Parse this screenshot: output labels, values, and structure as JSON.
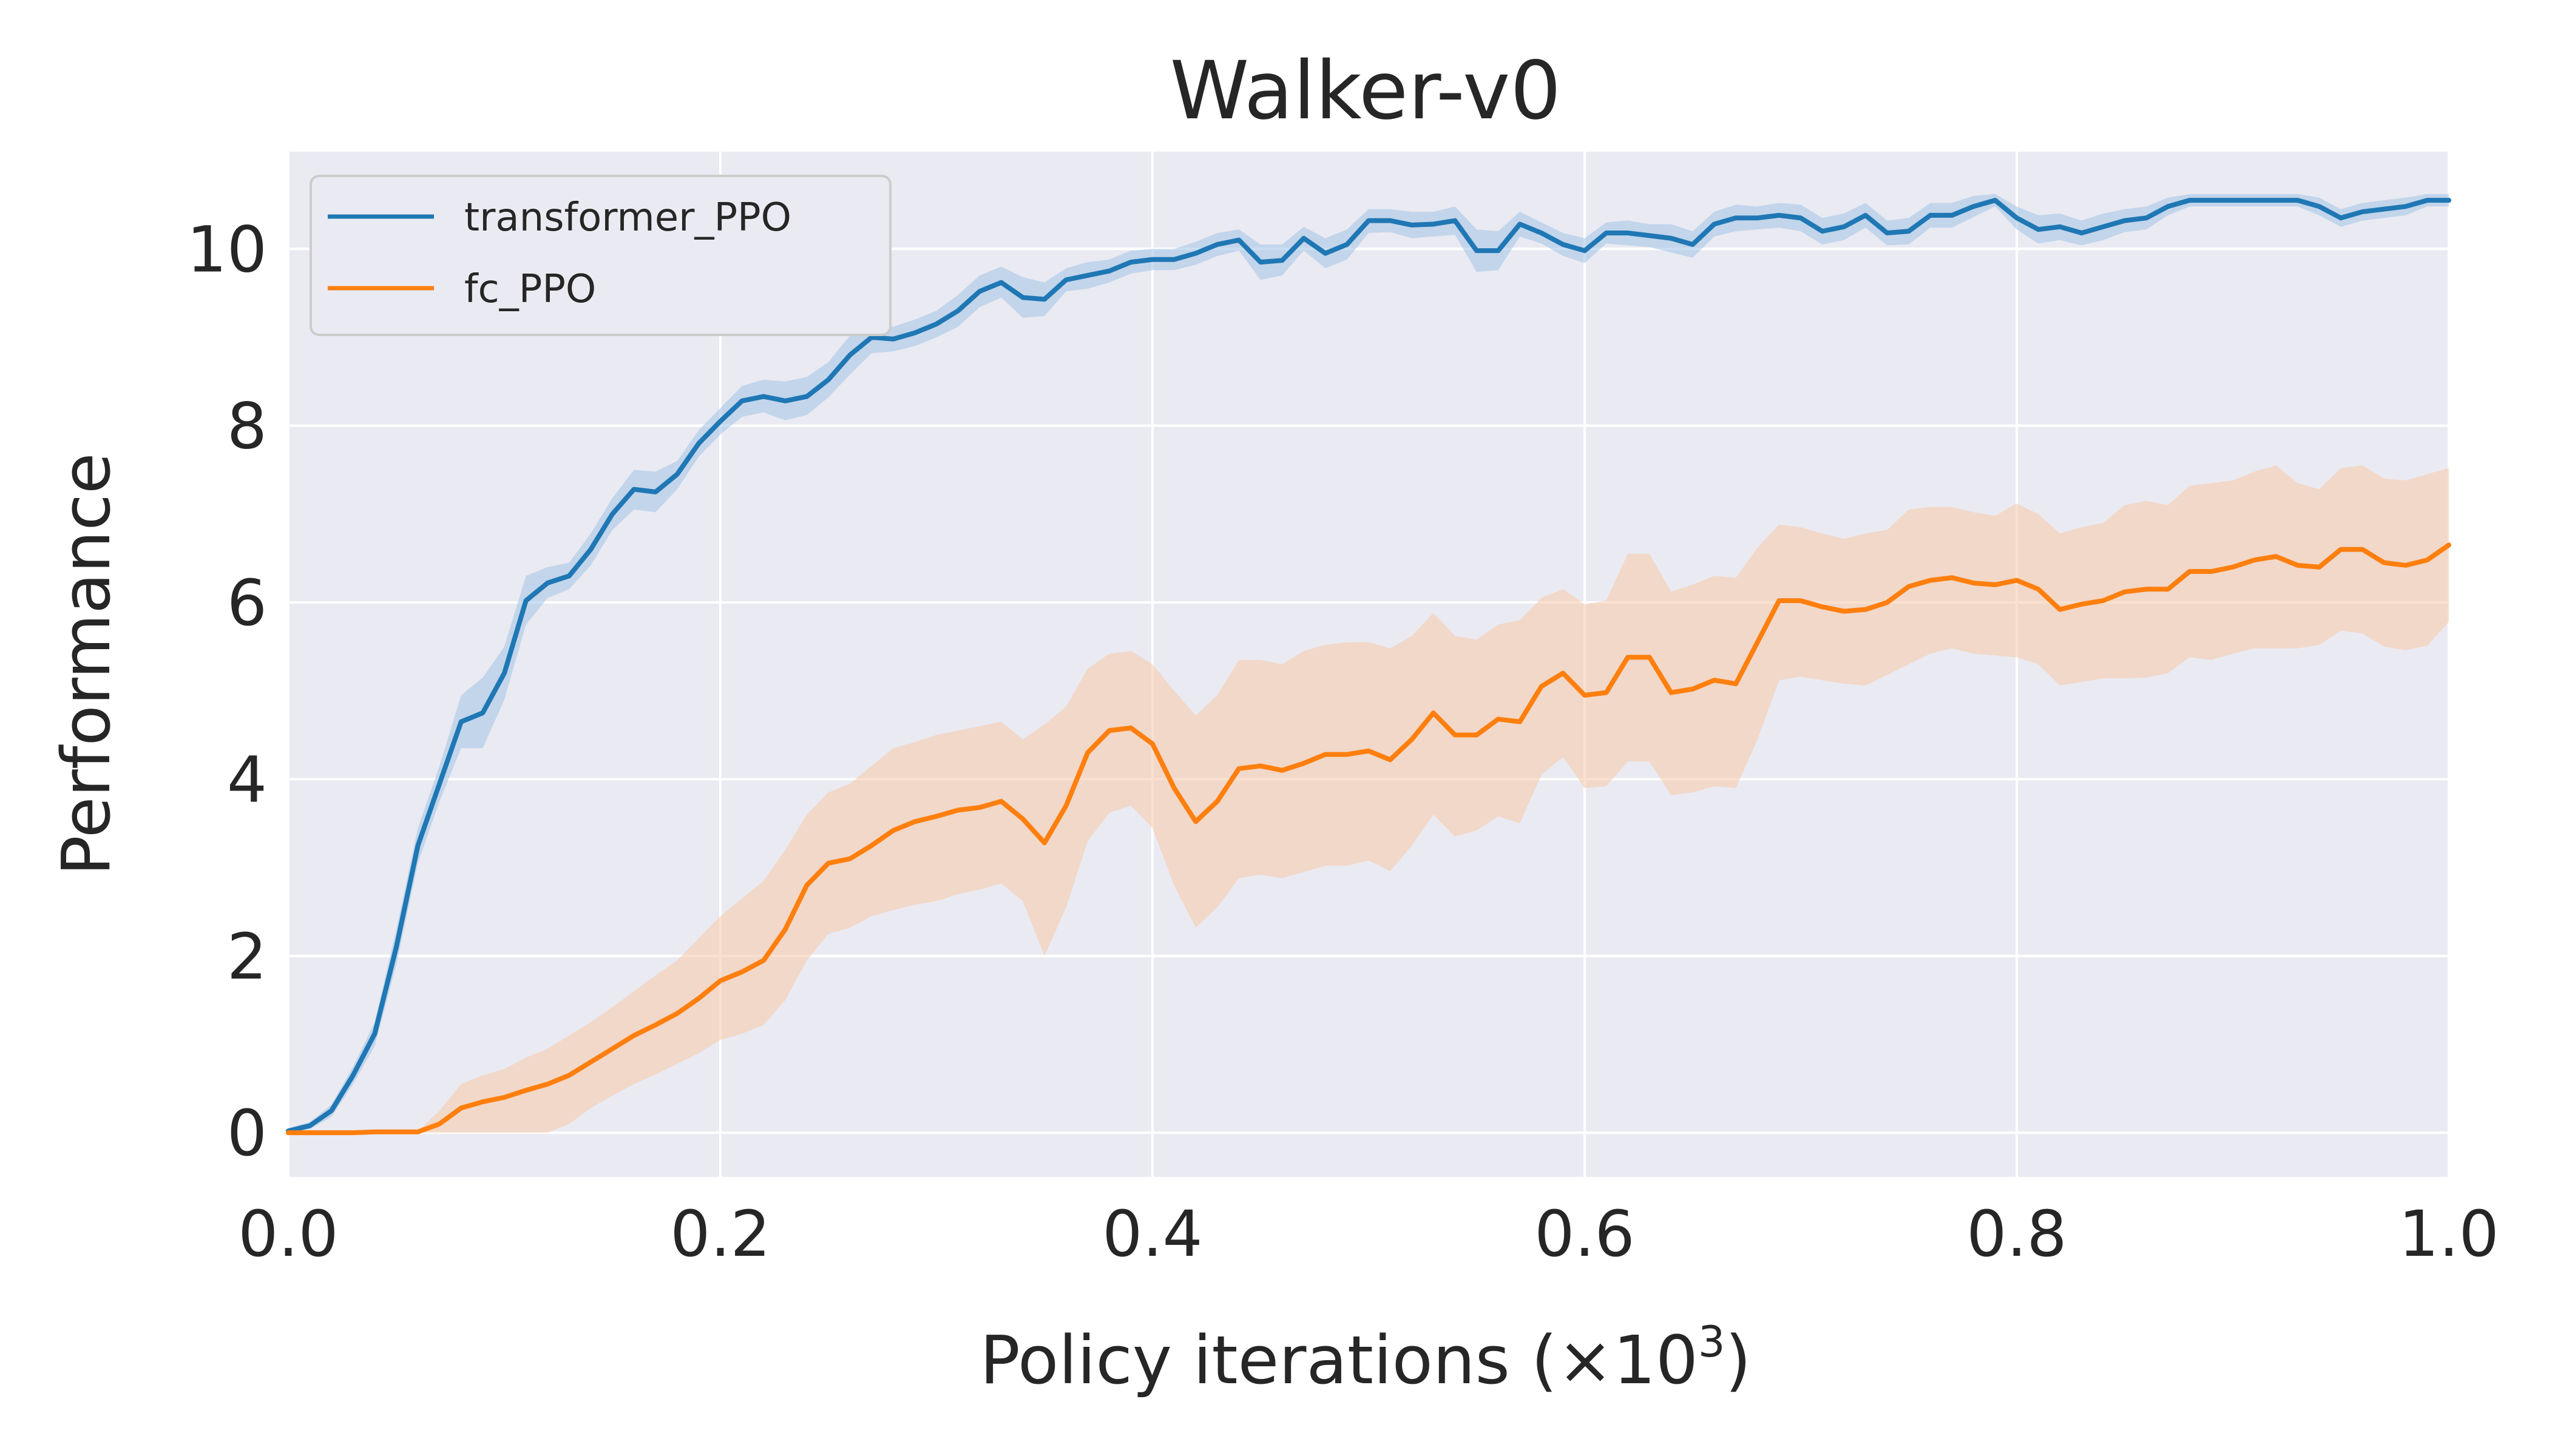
{
  "chart_data": {
    "type": "line",
    "title": "Walker-v0",
    "xlabel": "Policy iterations (×10",
    "xlabel_exponent": "3",
    "xlabel_close": ")",
    "ylabel": "Performance",
    "xlim": [
      0.0,
      1.0
    ],
    "ylim": [
      -0.5,
      11.1
    ],
    "xticks": [
      0.0,
      0.2,
      0.4,
      0.6,
      0.8,
      1.0
    ],
    "xtick_labels": [
      "0.0",
      "0.2",
      "0.4",
      "0.6",
      "0.8",
      "1.0"
    ],
    "yticks": [
      0,
      2,
      4,
      6,
      8,
      10
    ],
    "ytick_labels": [
      "0",
      "2",
      "4",
      "6",
      "8",
      "10"
    ],
    "grid": true,
    "legend_position": "top-left",
    "background_color": "#eaeaf2",
    "x": [
      0.0,
      0.01,
      0.02,
      0.03,
      0.04,
      0.05,
      0.06,
      0.07,
      0.08,
      0.09,
      0.1,
      0.11,
      0.12,
      0.13,
      0.14,
      0.15,
      0.16,
      0.17,
      0.18,
      0.19,
      0.2,
      0.21,
      0.22,
      0.23,
      0.24,
      0.25,
      0.26,
      0.27,
      0.28,
      0.29,
      0.3,
      0.31,
      0.32,
      0.33,
      0.34,
      0.35,
      0.36,
      0.37,
      0.38,
      0.39,
      0.4,
      0.41,
      0.42,
      0.43,
      0.44,
      0.45,
      0.46,
      0.47,
      0.48,
      0.49,
      0.5,
      0.51,
      0.52,
      0.53,
      0.54,
      0.55,
      0.56,
      0.57,
      0.58,
      0.59,
      0.6,
      0.61,
      0.62,
      0.63,
      0.64,
      0.65,
      0.66,
      0.67,
      0.68,
      0.69,
      0.7,
      0.71,
      0.72,
      0.73,
      0.74,
      0.75,
      0.76,
      0.77,
      0.78,
      0.79,
      0.8,
      0.81,
      0.82,
      0.83,
      0.84,
      0.85,
      0.86,
      0.87,
      0.88,
      0.89,
      0.9,
      0.91,
      0.92,
      0.93,
      0.94,
      0.95,
      0.96,
      0.97,
      0.98,
      0.99,
      1.0
    ],
    "series": [
      {
        "name": "transformer_PPO",
        "color": "#1f77b4",
        "band_color": "#a1c3e6",
        "values": [
          0.02,
          0.08,
          0.25,
          0.65,
          1.12,
          2.1,
          3.25,
          3.95,
          4.65,
          4.75,
          5.2,
          6.02,
          6.22,
          6.3,
          6.6,
          7.0,
          7.28,
          7.25,
          7.45,
          7.8,
          8.05,
          8.28,
          8.33,
          8.28,
          8.33,
          8.52,
          8.8,
          9.0,
          8.98,
          9.05,
          9.15,
          9.3,
          9.52,
          9.62,
          9.45,
          9.43,
          9.65,
          9.7,
          9.75,
          9.85,
          9.88,
          9.88,
          9.95,
          10.05,
          10.1,
          9.85,
          9.87,
          10.12,
          9.95,
          10.05,
          10.32,
          10.32,
          10.27,
          10.28,
          10.32,
          9.98,
          9.98,
          10.28,
          10.18,
          10.05,
          9.98,
          10.18,
          10.18,
          10.15,
          10.12,
          10.05,
          10.28,
          10.35,
          10.35,
          10.38,
          10.35,
          10.2,
          10.25,
          10.38,
          10.18,
          10.2,
          10.38,
          10.38,
          10.48,
          10.55,
          10.35,
          10.22,
          10.25,
          10.18,
          10.25,
          10.32,
          10.35,
          10.48,
          10.55,
          10.55,
          10.55,
          10.55,
          10.55,
          10.55,
          10.48,
          10.35,
          10.42,
          10.45,
          10.48,
          10.55,
          10.55
        ],
        "upper": [
          0.05,
          0.12,
          0.32,
          0.75,
          1.25,
          2.3,
          3.45,
          4.15,
          4.95,
          5.15,
          5.5,
          6.3,
          6.4,
          6.45,
          6.78,
          7.18,
          7.5,
          7.48,
          7.6,
          7.95,
          8.2,
          8.45,
          8.52,
          8.5,
          8.55,
          8.72,
          9.02,
          9.18,
          9.12,
          9.2,
          9.3,
          9.48,
          9.7,
          9.8,
          9.68,
          9.62,
          9.78,
          9.85,
          9.88,
          9.98,
          10.0,
          10.0,
          10.08,
          10.18,
          10.22,
          10.05,
          10.05,
          10.25,
          10.12,
          10.22,
          10.45,
          10.45,
          10.42,
          10.42,
          10.48,
          10.22,
          10.2,
          10.42,
          10.3,
          10.18,
          10.12,
          10.3,
          10.32,
          10.28,
          10.28,
          10.2,
          10.42,
          10.5,
          10.48,
          10.52,
          10.5,
          10.35,
          10.4,
          10.52,
          10.32,
          10.35,
          10.52,
          10.52,
          10.6,
          10.62,
          10.48,
          10.38,
          10.4,
          10.32,
          10.4,
          10.45,
          10.48,
          10.58,
          10.62,
          10.62,
          10.62,
          10.62,
          10.62,
          10.62,
          10.58,
          10.45,
          10.52,
          10.55,
          10.58,
          10.62,
          10.62
        ],
        "lower": [
          0.0,
          0.04,
          0.18,
          0.55,
          0.98,
          1.9,
          3.05,
          3.75,
          4.35,
          4.35,
          4.9,
          5.75,
          6.05,
          6.15,
          6.42,
          6.82,
          7.05,
          7.02,
          7.28,
          7.65,
          7.9,
          8.1,
          8.15,
          8.06,
          8.12,
          8.32,
          8.58,
          8.82,
          8.84,
          8.9,
          9.0,
          9.12,
          9.34,
          9.45,
          9.22,
          9.24,
          9.52,
          9.55,
          9.62,
          9.72,
          9.76,
          9.76,
          9.82,
          9.92,
          9.98,
          9.65,
          9.7,
          9.98,
          9.78,
          9.88,
          10.18,
          10.19,
          10.12,
          10.14,
          10.16,
          9.74,
          9.76,
          10.14,
          10.06,
          9.92,
          9.84,
          10.06,
          10.04,
          10.02,
          9.96,
          9.9,
          10.14,
          10.2,
          10.22,
          10.24,
          10.2,
          10.05,
          10.1,
          10.24,
          10.04,
          10.05,
          10.24,
          10.24,
          10.36,
          10.48,
          10.22,
          10.06,
          10.1,
          10.04,
          10.1,
          10.19,
          10.22,
          10.38,
          10.48,
          10.48,
          10.48,
          10.48,
          10.48,
          10.48,
          10.38,
          10.25,
          10.32,
          10.35,
          10.38,
          10.48,
          10.48
        ]
      },
      {
        "name": "fc_PPO",
        "color": "#ff7f0e",
        "band_color": "#f5c8a8",
        "values": [
          0.0,
          0.0,
          0.0,
          0.0,
          0.01,
          0.01,
          0.01,
          0.1,
          0.28,
          0.35,
          0.4,
          0.48,
          0.55,
          0.65,
          0.8,
          0.95,
          1.1,
          1.22,
          1.35,
          1.52,
          1.72,
          1.82,
          1.95,
          2.3,
          2.8,
          3.05,
          3.1,
          3.25,
          3.42,
          3.52,
          3.58,
          3.65,
          3.68,
          3.75,
          3.55,
          3.28,
          3.7,
          4.3,
          4.55,
          4.58,
          4.4,
          3.9,
          3.52,
          3.75,
          4.12,
          4.15,
          4.1,
          4.18,
          4.28,
          4.28,
          4.32,
          4.22,
          4.45,
          4.75,
          4.5,
          4.5,
          4.68,
          4.65,
          5.05,
          5.2,
          4.95,
          4.98,
          5.38,
          5.38,
          4.98,
          5.02,
          5.12,
          5.08,
          5.55,
          6.02,
          6.02,
          5.95,
          5.9,
          5.92,
          6.0,
          6.18,
          6.25,
          6.28,
          6.22,
          6.2,
          6.25,
          6.15,
          5.92,
          5.98,
          6.02,
          6.12,
          6.15,
          6.15,
          6.35,
          6.35,
          6.4,
          6.48,
          6.52,
          6.42,
          6.4,
          6.6,
          6.6,
          6.45,
          6.42,
          6.48,
          6.65
        ],
        "upper": [
          0.0,
          0.0,
          0.0,
          0.0,
          0.01,
          0.01,
          0.02,
          0.25,
          0.55,
          0.65,
          0.72,
          0.85,
          0.95,
          1.1,
          1.25,
          1.42,
          1.6,
          1.78,
          1.95,
          2.2,
          2.45,
          2.65,
          2.85,
          3.2,
          3.6,
          3.85,
          3.95,
          4.15,
          4.35,
          4.42,
          4.5,
          4.55,
          4.6,
          4.65,
          4.45,
          4.62,
          4.82,
          5.25,
          5.42,
          5.45,
          5.3,
          5.0,
          4.72,
          4.95,
          5.35,
          5.35,
          5.3,
          5.45,
          5.52,
          5.55,
          5.55,
          5.48,
          5.62,
          5.88,
          5.62,
          5.58,
          5.75,
          5.8,
          6.05,
          6.15,
          5.98,
          6.02,
          6.55,
          6.55,
          6.12,
          6.2,
          6.3,
          6.28,
          6.62,
          6.88,
          6.85,
          6.78,
          6.72,
          6.78,
          6.82,
          7.05,
          7.08,
          7.08,
          7.02,
          6.98,
          7.12,
          7.0,
          6.78,
          6.85,
          6.9,
          7.1,
          7.15,
          7.1,
          7.32,
          7.35,
          7.38,
          7.48,
          7.55,
          7.35,
          7.28,
          7.52,
          7.55,
          7.4,
          7.38,
          7.45,
          7.52
        ],
        "lower": [
          0.0,
          0.0,
          0.0,
          0.0,
          0.0,
          0.0,
          0.0,
          0.0,
          0.0,
          0.0,
          0.0,
          0.0,
          0.0,
          0.1,
          0.28,
          0.42,
          0.55,
          0.66,
          0.78,
          0.9,
          1.05,
          1.12,
          1.22,
          1.5,
          1.95,
          2.25,
          2.32,
          2.45,
          2.52,
          2.58,
          2.62,
          2.7,
          2.75,
          2.82,
          2.62,
          2.0,
          2.55,
          3.3,
          3.62,
          3.7,
          3.45,
          2.8,
          2.32,
          2.55,
          2.88,
          2.92,
          2.88,
          2.95,
          3.02,
          3.02,
          3.08,
          2.96,
          3.25,
          3.6,
          3.35,
          3.42,
          3.58,
          3.5,
          4.05,
          4.25,
          3.9,
          3.92,
          4.2,
          4.2,
          3.82,
          3.85,
          3.92,
          3.9,
          4.45,
          5.12,
          5.16,
          5.12,
          5.08,
          5.06,
          5.18,
          5.3,
          5.42,
          5.48,
          5.42,
          5.4,
          5.38,
          5.3,
          5.06,
          5.1,
          5.14,
          5.14,
          5.15,
          5.2,
          5.38,
          5.35,
          5.42,
          5.48,
          5.48,
          5.48,
          5.52,
          5.68,
          5.65,
          5.5,
          5.46,
          5.51,
          5.78
        ]
      }
    ]
  }
}
